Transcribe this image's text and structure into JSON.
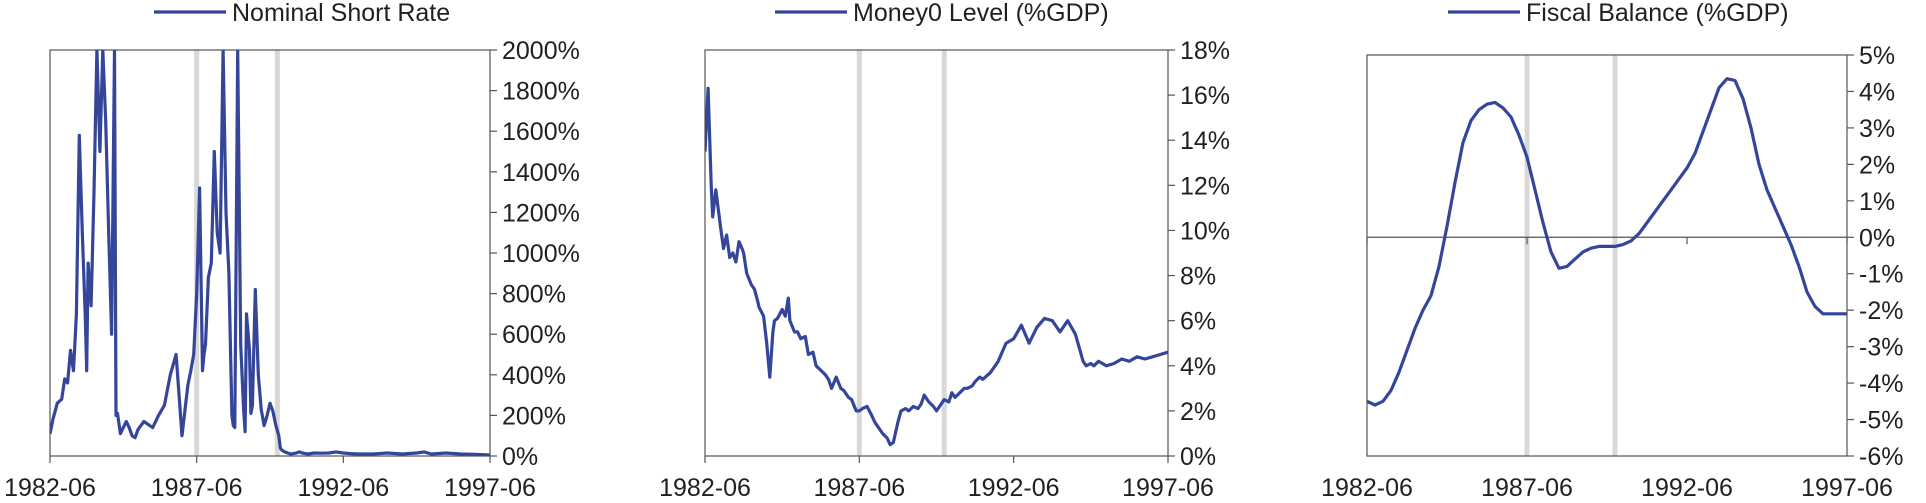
{
  "colors": {
    "series": "#35469a",
    "recession": "#d8d8d8",
    "axis": "#555555"
  },
  "chart_data": [
    {
      "type": "line",
      "title": "",
      "legend": "top",
      "x_ticks": [
        "1982-06",
        "1987-06",
        "1992-06",
        "1997-06"
      ],
      "xlim": [
        1982.5,
        1997.5
      ],
      "ylim": [
        0,
        2000
      ],
      "y_ticks": [
        "2000%",
        "1800%",
        "1600%",
        "1400%",
        "1200%",
        "1000%",
        "800%",
        "600%",
        "400%",
        "200%",
        "0%"
      ],
      "recession_bands": [
        1987.5,
        1990.25
      ],
      "series": [
        {
          "name": "Nominal Short Rate",
          "x": [
            1982.5,
            1982.6,
            1982.75,
            1982.9,
            1983.0,
            1983.1,
            1983.2,
            1983.3,
            1983.4,
            1983.5,
            1983.6,
            1983.7,
            1983.75,
            1983.8,
            1983.9,
            1984.0,
            1984.1,
            1984.2,
            1984.3,
            1984.4,
            1984.5,
            1984.6,
            1984.7,
            1984.75,
            1984.8,
            1984.9,
            1985.0,
            1985.1,
            1985.2,
            1985.3,
            1985.4,
            1985.5,
            1985.6,
            1985.7,
            1985.8,
            1985.9,
            1986.0,
            1986.2,
            1986.4,
            1986.6,
            1986.8,
            1987.0,
            1987.2,
            1987.3,
            1987.4,
            1987.5,
            1987.6,
            1987.7,
            1987.75,
            1987.8,
            1987.9,
            1988.0,
            1988.1,
            1988.2,
            1988.3,
            1988.4,
            1988.5,
            1988.6,
            1988.7,
            1988.75,
            1988.8,
            1988.9,
            1989.0,
            1989.1,
            1989.15,
            1989.2,
            1989.3,
            1989.35,
            1989.4,
            1989.5,
            1989.6,
            1989.7,
            1989.8,
            1989.9,
            1990.0,
            1990.1,
            1990.2,
            1990.3,
            1990.35,
            1990.4,
            1990.45,
            1990.5,
            1990.6,
            1990.7,
            1990.8,
            1990.9,
            1991.0,
            1991.1,
            1991.2,
            1991.3,
            1991.5,
            1991.75,
            1992.0,
            1992.25,
            1992.5,
            1992.75,
            1993.0,
            1993.5,
            1994.0,
            1994.5,
            1995.0,
            1995.25,
            1995.5,
            1996.0,
            1996.5,
            1997.0,
            1997.5
          ],
          "values": [
            110,
            180,
            260,
            280,
            380,
            360,
            520,
            420,
            700,
            1580,
            1100,
            700,
            420,
            950,
            740,
            1300,
            2000,
            1500,
            2000,
            1650,
            1100,
            600,
            2000,
            200,
            210,
            110,
            140,
            170,
            140,
            100,
            90,
            130,
            150,
            170,
            160,
            150,
            140,
            200,
            250,
            400,
            500,
            100,
            350,
            420,
            500,
            800,
            1320,
            420,
            500,
            550,
            880,
            950,
            1500,
            1100,
            1000,
            2000,
            1200,
            900,
            200,
            150,
            140,
            2000,
            550,
            230,
            120,
            700,
            520,
            210,
            250,
            820,
            400,
            230,
            150,
            200,
            260,
            220,
            150,
            100,
            40,
            30,
            25,
            20,
            15,
            10,
            12,
            15,
            20,
            15,
            12,
            10,
            15,
            14,
            15,
            20,
            15,
            12,
            10,
            10,
            15,
            10,
            15,
            20,
            10,
            15,
            10,
            8,
            5
          ]
        }
      ]
    },
    {
      "type": "line",
      "title": "",
      "legend": "top",
      "x_ticks": [
        "1982-06",
        "1987-06",
        "1992-06",
        "1997-06"
      ],
      "xlim": [
        1982.5,
        1997.5
      ],
      "ylim": [
        0,
        18
      ],
      "y_ticks": [
        "18%",
        "16%",
        "14%",
        "12%",
        "10%",
        "8%",
        "6%",
        "4%",
        "2%",
        "0%"
      ],
      "recession_bands": [
        1987.5,
        1990.25
      ],
      "series": [
        {
          "name": "Money0 Level (%GDP)",
          "x": [
            1982.5,
            1982.6,
            1982.7,
            1982.75,
            1982.85,
            1983.0,
            1983.1,
            1983.2,
            1983.3,
            1983.4,
            1983.5,
            1983.6,
            1983.7,
            1983.75,
            1983.85,
            1984.0,
            1984.1,
            1984.2,
            1984.25,
            1984.4,
            1984.5,
            1984.6,
            1984.7,
            1984.75,
            1984.85,
            1985.0,
            1985.1,
            1985.2,
            1985.25,
            1985.4,
            1985.5,
            1985.6,
            1985.75,
            1985.85,
            1986.0,
            1986.1,
            1986.25,
            1986.4,
            1986.5,
            1986.6,
            1986.75,
            1986.9,
            1987.0,
            1987.15,
            1987.25,
            1987.4,
            1987.5,
            1987.6,
            1987.75,
            1987.9,
            1988.0,
            1988.15,
            1988.25,
            1988.4,
            1988.5,
            1988.6,
            1988.75,
            1988.85,
            1989.0,
            1989.1,
            1989.25,
            1989.4,
            1989.5,
            1989.6,
            1989.75,
            1989.9,
            1990.0,
            1990.15,
            1990.25,
            1990.4,
            1990.5,
            1990.6,
            1990.75,
            1990.9,
            1991.0,
            1991.15,
            1991.25,
            1991.4,
            1991.5,
            1991.75,
            1992.0,
            1992.25,
            1992.5,
            1992.75,
            1993.0,
            1993.25,
            1993.5,
            1993.75,
            1994.0,
            1994.25,
            1994.5,
            1994.75,
            1994.85,
            1995.0,
            1995.1,
            1995.25,
            1995.5,
            1995.75,
            1996.0,
            1996.25,
            1996.5,
            1996.75,
            1997.0,
            1997.25,
            1997.5
          ],
          "values": [
            13.5,
            16.3,
            12.0,
            10.6,
            11.8,
            10.2,
            9.2,
            9.8,
            8.8,
            9.0,
            8.6,
            9.5,
            9.2,
            9.0,
            8.1,
            7.6,
            7.4,
            6.9,
            6.6,
            6.2,
            5.0,
            3.5,
            5.5,
            6.0,
            6.1,
            6.5,
            6.2,
            7.0,
            6.0,
            5.5,
            5.5,
            5.2,
            5.3,
            4.5,
            4.6,
            4.0,
            3.8,
            3.6,
            3.4,
            3.0,
            3.5,
            3.0,
            2.9,
            2.6,
            2.5,
            2.0,
            2.0,
            2.1,
            2.2,
            1.8,
            1.5,
            1.2,
            1.0,
            0.8,
            0.5,
            0.6,
            1.5,
            2.0,
            2.1,
            2.0,
            2.2,
            2.1,
            2.3,
            2.7,
            2.4,
            2.2,
            2.0,
            2.3,
            2.5,
            2.4,
            2.8,
            2.6,
            2.8,
            3.0,
            3.0,
            3.1,
            3.3,
            3.5,
            3.4,
            3.7,
            4.2,
            5.0,
            5.2,
            5.8,
            5.0,
            5.7,
            6.1,
            6.0,
            5.5,
            6.0,
            5.4,
            4.2,
            4.0,
            4.1,
            4.0,
            4.2,
            4.0,
            4.1,
            4.3,
            4.2,
            4.4,
            4.3,
            4.4,
            4.5,
            4.6
          ]
        }
      ]
    },
    {
      "type": "line",
      "title": "",
      "legend": "top",
      "x_ticks": [
        "1982-06",
        "1987-06",
        "1992-06",
        "1997-06"
      ],
      "xlim": [
        1982.5,
        1997.5
      ],
      "ylim": [
        -6,
        5
      ],
      "y_ticks": [
        "5%",
        "4%",
        "3%",
        "2%",
        "1%",
        "0%",
        "-1%",
        "-2%",
        "-3%",
        "-4%",
        "-5%",
        "-6%"
      ],
      "recession_bands": [
        1987.5,
        1990.25
      ],
      "zero_line": true,
      "series": [
        {
          "name": "Fiscal Balance (%GDP)",
          "x": [
            1982.5,
            1982.75,
            1983.0,
            1983.25,
            1983.5,
            1983.75,
            1984.0,
            1984.25,
            1984.5,
            1984.75,
            1985.0,
            1985.25,
            1985.5,
            1985.75,
            1986.0,
            1986.25,
            1986.5,
            1986.75,
            1987.0,
            1987.25,
            1987.5,
            1987.75,
            1988.0,
            1988.25,
            1988.5,
            1988.75,
            1989.0,
            1989.25,
            1989.5,
            1989.75,
            1990.0,
            1990.25,
            1990.5,
            1990.75,
            1991.0,
            1991.25,
            1991.5,
            1991.75,
            1992.0,
            1992.25,
            1992.5,
            1992.75,
            1993.0,
            1993.25,
            1993.5,
            1993.75,
            1994.0,
            1994.25,
            1994.5,
            1994.75,
            1995.0,
            1995.25,
            1995.5,
            1995.75,
            1996.0,
            1996.25,
            1996.5,
            1996.75,
            1997.0,
            1997.25,
            1997.5
          ],
          "values": [
            -4.5,
            -4.6,
            -4.5,
            -4.2,
            -3.7,
            -3.1,
            -2.5,
            -2.0,
            -1.6,
            -0.8,
            0.3,
            1.5,
            2.6,
            3.2,
            3.5,
            3.65,
            3.7,
            3.55,
            3.3,
            2.8,
            2.2,
            1.3,
            0.4,
            -0.4,
            -0.85,
            -0.8,
            -0.6,
            -0.4,
            -0.3,
            -0.25,
            -0.25,
            -0.25,
            -0.2,
            -0.1,
            0.1,
            0.4,
            0.7,
            1.0,
            1.3,
            1.6,
            1.9,
            2.3,
            2.9,
            3.5,
            4.1,
            4.35,
            4.3,
            3.8,
            3.0,
            2.0,
            1.3,
            0.8,
            0.3,
            -0.2,
            -0.8,
            -1.5,
            -1.9,
            -2.1,
            -2.1,
            -2.1,
            -2.1
          ]
        }
      ]
    }
  ]
}
